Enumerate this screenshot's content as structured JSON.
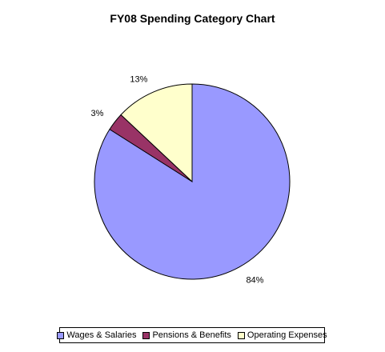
{
  "chart_data": {
    "type": "pie",
    "title": "FY08 Spending Category Chart",
    "categories": [
      "Wages & Salaries",
      "Pensions & Benefits",
      "Operating Expenses"
    ],
    "values": [
      84,
      3,
      13
    ],
    "labels": [
      "84%",
      "3%",
      "13%"
    ],
    "colors": [
      "#9999FF",
      "#993366",
      "#FFFFCC"
    ],
    "legend_position": "bottom"
  }
}
